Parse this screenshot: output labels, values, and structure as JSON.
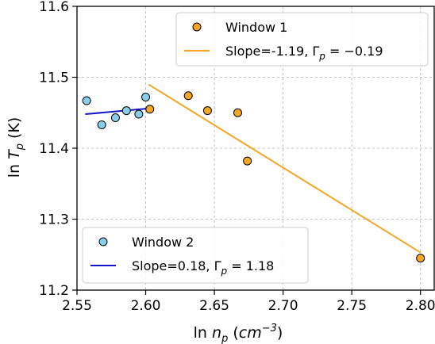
{
  "chart_data": {
    "type": "scatter",
    "xlabel": "ln n_p (cm^-3)",
    "ylabel": "ln T_p (K)",
    "xlim": [
      2.55,
      2.81
    ],
    "ylim": [
      11.2,
      11.6
    ],
    "xticks": [
      "2.55",
      "2.60",
      "2.65",
      "2.70",
      "2.75",
      "2.80"
    ],
    "yticks": [
      "11.2",
      "11.3",
      "11.4",
      "11.5",
      "11.6"
    ],
    "grid": true,
    "series": [
      {
        "name": "Window 1",
        "kind": "scatter",
        "color": "#f5a623",
        "points": [
          [
            2.603,
            11.455
          ],
          [
            2.631,
            11.474
          ],
          [
            2.645,
            11.453
          ],
          [
            2.667,
            11.45
          ],
          [
            2.674,
            11.382
          ],
          [
            2.8,
            11.245
          ]
        ]
      },
      {
        "name": "Slope=-1.19, Γp = −0.19",
        "kind": "line",
        "color": "#f5a623",
        "points": [
          [
            2.602,
            11.49
          ],
          [
            2.8,
            11.253
          ]
        ]
      },
      {
        "name": "Window 2",
        "kind": "scatter",
        "color": "#87ceeb",
        "points": [
          [
            2.557,
            11.467
          ],
          [
            2.568,
            11.433
          ],
          [
            2.578,
            11.443
          ],
          [
            2.586,
            11.453
          ],
          [
            2.595,
            11.448
          ],
          [
            2.6,
            11.472
          ]
        ]
      },
      {
        "name": "Slope=0.18, Γp = 1.18",
        "kind": "line",
        "color": "#1515c8",
        "points": [
          [
            2.556,
            11.448
          ],
          [
            2.602,
            11.456
          ]
        ]
      }
    ],
    "legends": [
      {
        "placement": "top-right",
        "entries": [
          {
            "kind": "scatter",
            "label_parts": [
              "Window 1"
            ]
          },
          {
            "kind": "line",
            "label_parts": [
              "Slope=-1.19, ",
              "Γ",
              "p",
              " = −0.19"
            ]
          }
        ]
      },
      {
        "placement": "bottom-left",
        "entries": [
          {
            "kind": "scatter",
            "label_parts": [
              "Window 2"
            ]
          },
          {
            "kind": "line",
            "label_parts": [
              "Slope=0.18, ",
              "Γ",
              "p",
              " = 1.18"
            ]
          }
        ]
      }
    ]
  }
}
